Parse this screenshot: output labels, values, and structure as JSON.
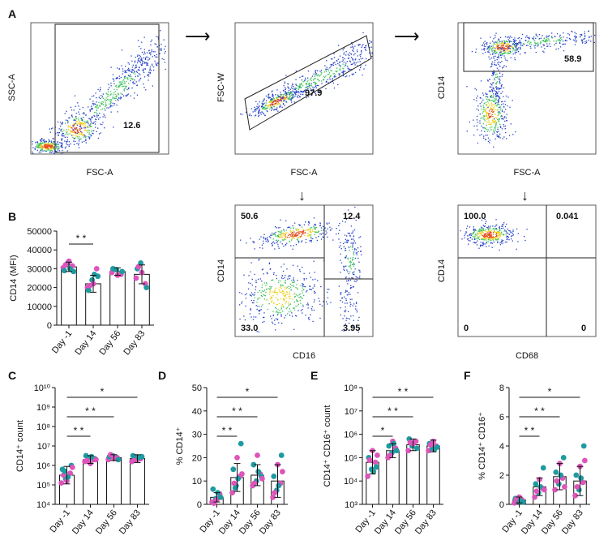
{
  "panel_letters": {
    "A": "A",
    "B": "B",
    "C": "C",
    "D": "D",
    "E": "E",
    "F": "F"
  },
  "colors": {
    "magenta": "#dd55bb",
    "teal": "#1f9aa0",
    "gate": "#222222",
    "dense": "#e34a1a",
    "mid": "#f0d020",
    "green": "#3ec35a",
    "sparse": "#2440c8"
  },
  "flow": {
    "plot1": {
      "xlabel": "FSC-A",
      "ylabel": "SSC-A",
      "gate_value": "12.6"
    },
    "plot2": {
      "xlabel": "FSC-A",
      "ylabel": "FSC-W",
      "gate_value": "97.9"
    },
    "plot3": {
      "xlabel": "FSC-A",
      "ylabel": "CD14",
      "gate_value": "58.9"
    },
    "plot4": {
      "xlabel": "CD16",
      "ylabel": "CD14",
      "q_tl": "50.6",
      "q_tr": "12.4",
      "q_bl": "33.0",
      "q_br": "3.95"
    },
    "plot5": {
      "xlabel": "CD68",
      "ylabel": "CD14",
      "q_tl": "100.0",
      "q_tr": "0.041",
      "q_bl": "0",
      "q_br": "0"
    }
  },
  "chart_data": [
    {
      "panel": "B",
      "type": "bar",
      "scale": "linear",
      "ylabel": "CD14 (MFI)",
      "ylim": [
        0,
        50000
      ],
      "yticks": [
        "0",
        "10000",
        "20000",
        "30000",
        "40000",
        "50000"
      ],
      "categories": [
        "Day -1",
        "Day 14",
        "Day 56",
        "Day 83"
      ],
      "values": [
        31000,
        22000,
        28500,
        27000
      ],
      "error": [
        2500,
        4500,
        2000,
        5000
      ],
      "points": [
        [
          30500,
          33000,
          31500,
          29000,
          34000,
          28500,
          32000,
          30000
        ],
        [
          20000,
          24000,
          30000,
          18500,
          22000,
          26000,
          21000,
          27000
        ],
        [
          28000,
          29500,
          27000,
          30000,
          26500,
          28500
        ],
        [
          25000,
          33000,
          22000,
          30000,
          28000,
          20000,
          31000
        ]
      ],
      "significance": [
        {
          "from": 0,
          "to": 1,
          "label": "* *"
        }
      ]
    },
    {
      "panel": "C",
      "type": "bar",
      "scale": "log",
      "ylabel": "CD14⁺ count",
      "ylim": [
        4,
        10
      ],
      "yticks": [
        "10⁴",
        "10⁵",
        "10⁶",
        "10⁷",
        "10⁸",
        "10⁹",
        "10¹⁰"
      ],
      "categories": [
        "Day -1",
        "Day 14",
        "Day 56",
        "Day 83"
      ],
      "values": [
        5.5,
        6.3,
        6.4,
        6.35
      ],
      "error": [
        0.45,
        0.2,
        0.15,
        0.2
      ],
      "points": [
        [
          5.1,
          5.3,
          5.6,
          5.8,
          5.2,
          6.0,
          5.5,
          5.4,
          5.9,
          5.7
        ],
        [
          6.2,
          6.4,
          6.3,
          6.5,
          6.1,
          6.35,
          6.25,
          6.45,
          6.3
        ],
        [
          6.3,
          6.5,
          6.4,
          6.45,
          6.35,
          6.3,
          6.55
        ],
        [
          6.2,
          6.4,
          6.35,
          6.5,
          6.3,
          6.45,
          6.25,
          6.4
        ]
      ],
      "significance": [
        {
          "from": 0,
          "to": 1,
          "label": "* *"
        },
        {
          "from": 0,
          "to": 2,
          "label": "* *"
        },
        {
          "from": 0,
          "to": 3,
          "label": "*"
        }
      ]
    },
    {
      "panel": "D",
      "type": "bar",
      "scale": "linear",
      "ylabel": "% CD14⁺",
      "ylim": [
        0,
        50
      ],
      "yticks": [
        "0",
        "10",
        "20",
        "30",
        "40",
        "50"
      ],
      "categories": [
        "Day -1",
        "Day 14",
        "Day 56",
        "Day 83"
      ],
      "values": [
        3,
        11.5,
        12.5,
        10
      ],
      "error": [
        2,
        6,
        4.5,
        7
      ],
      "points": [
        [
          1,
          2.5,
          4.5,
          6.5,
          2,
          3,
          0.5,
          5
        ],
        [
          5,
          8,
          12,
          15,
          20,
          26,
          9,
          11,
          13,
          7
        ],
        [
          8,
          10,
          13,
          17,
          21,
          12,
          9,
          14,
          11
        ],
        [
          3,
          6,
          9,
          12,
          17,
          21,
          5,
          8,
          14
        ]
      ],
      "significance": [
        {
          "from": 0,
          "to": 1,
          "label": "* *"
        },
        {
          "from": 0,
          "to": 2,
          "label": "* *"
        },
        {
          "from": 0,
          "to": 3,
          "label": "*"
        }
      ]
    },
    {
      "panel": "E",
      "type": "bar",
      "scale": "log",
      "ylabel": "CD14⁺ CD16⁺ count",
      "ylim": [
        3,
        8
      ],
      "yticks": [
        "10³",
        "10⁴",
        "10⁵",
        "10⁶",
        "10⁷",
        "10⁸"
      ],
      "categories": [
        "Day -1",
        "Day 14",
        "Day 56",
        "Day 83"
      ],
      "values": [
        4.8,
        5.3,
        5.55,
        5.5
      ],
      "error": [
        0.5,
        0.3,
        0.25,
        0.25
      ],
      "points": [
        [
          4.2,
          4.5,
          4.8,
          5.0,
          5.3,
          4.6,
          4.9,
          4.4,
          5.1
        ],
        [
          5.0,
          5.2,
          5.4,
          5.5,
          5.7,
          5.3,
          5.1,
          5.6
        ],
        [
          5.3,
          5.5,
          5.7,
          5.8,
          5.6,
          5.4,
          5.65
        ],
        [
          5.3,
          5.4,
          5.5,
          5.6,
          5.7,
          5.45,
          5.55,
          5.35
        ]
      ],
      "significance": [
        {
          "from": 0,
          "to": 1,
          "label": "*"
        },
        {
          "from": 0,
          "to": 2,
          "label": "* *"
        },
        {
          "from": 0,
          "to": 3,
          "label": "* *"
        }
      ]
    },
    {
      "panel": "F",
      "type": "bar",
      "scale": "linear",
      "ylabel": "% CD14⁺ CD16⁺",
      "ylim": [
        0,
        8
      ],
      "yticks": [
        "0",
        "2",
        "4",
        "6",
        "8"
      ],
      "categories": [
        "Day -1",
        "Day 14",
        "Day 56",
        "Day 83"
      ],
      "values": [
        0.3,
        1.2,
        1.9,
        1.6
      ],
      "error": [
        0.2,
        0.6,
        0.9,
        1.0
      ],
      "points": [
        [
          0.1,
          0.2,
          0.3,
          0.4,
          0.5,
          0.15,
          0.35,
          0.25
        ],
        [
          0.5,
          0.8,
          1.1,
          1.4,
          1.7,
          2.5,
          0.9,
          1.2,
          1.0
        ],
        [
          1.0,
          1.4,
          1.8,
          2.2,
          2.8,
          3.2,
          1.6,
          2.0,
          1.2
        ],
        [
          0.6,
          1.0,
          1.5,
          2.0,
          2.6,
          4.0,
          1.2,
          1.8,
          3.0
        ]
      ],
      "significance": [
        {
          "from": 0,
          "to": 1,
          "label": "* *"
        },
        {
          "from": 0,
          "to": 2,
          "label": "* *"
        },
        {
          "from": 0,
          "to": 3,
          "label": "*"
        }
      ]
    }
  ]
}
